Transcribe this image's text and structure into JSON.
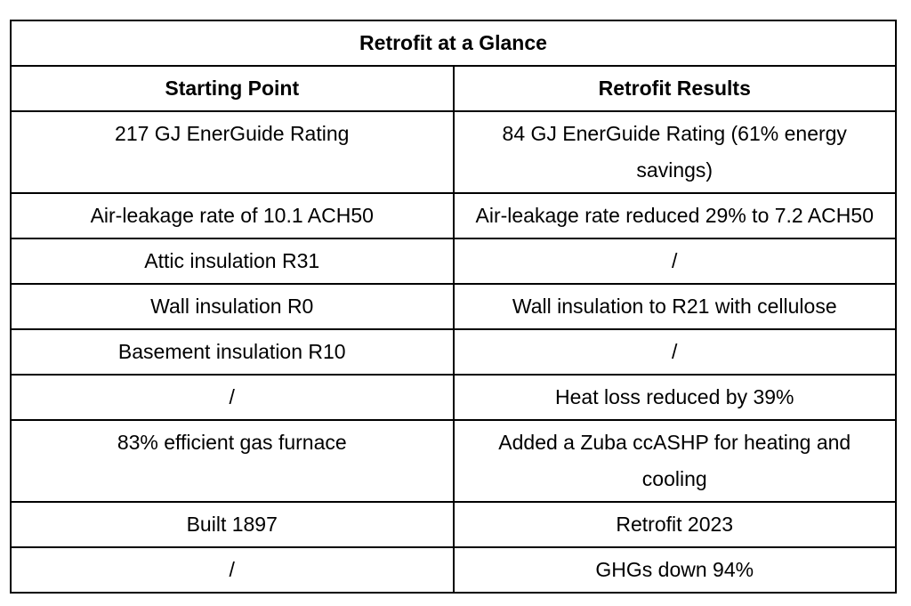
{
  "table": {
    "title": "Retrofit at a Glance",
    "columns": [
      "Starting Point",
      "Retrofit Results"
    ],
    "rows": [
      [
        "217 GJ EnerGuide Rating",
        "84 GJ EnerGuide Rating (61% energy savings)"
      ],
      [
        "Air-leakage rate of 10.1 ACH50",
        "Air-leakage rate reduced 29% to 7.2 ACH50"
      ],
      [
        "Attic insulation R31",
        "/"
      ],
      [
        "Wall insulation R0",
        "Wall insulation to R21 with cellulose"
      ],
      [
        "Basement insulation R10",
        "/"
      ],
      [
        "/",
        "Heat loss reduced by 39%"
      ],
      [
        "83% efficient gas furnace",
        "Added a Zuba ccASHP for heating and cooling"
      ],
      [
        "Built 1897",
        "Retrofit 2023"
      ],
      [
        "/",
        "GHGs down 94%"
      ]
    ],
    "colors": {
      "border": "#000000",
      "text": "#000000",
      "background": "#ffffff"
    }
  }
}
